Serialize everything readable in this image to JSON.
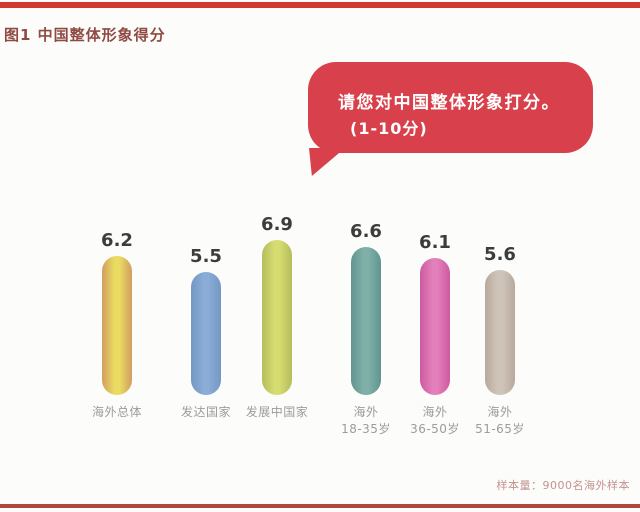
{
  "page": {
    "title": "图1 中国整体形象得分",
    "footnote": "样本量：9000名海外样本"
  },
  "bubble": {
    "line1": "请您对中国整体形象打分。",
    "line2": "(1-10分)"
  },
  "colors": {
    "top_bar": "#D03A2F",
    "bottom_bar": "#B2463E",
    "bubble": "#D8414B",
    "title": "#8F4B43",
    "value_label": "#3C3C3C",
    "category_label": "#9C9C9C",
    "footnote": "#C4928D"
  },
  "chart_data": {
    "type": "bar",
    "title": "图1 中国整体形象得分",
    "question": "请您对中国整体形象打分。(1-10分)",
    "categories": [
      "海外总体",
      "发达国家",
      "发展中国家",
      "海外\n18-35岁",
      "海外\n36-50岁",
      "海外\n51-65岁"
    ],
    "values": [
      6.2,
      5.5,
      6.9,
      6.6,
      6.1,
      5.6
    ],
    "value_range": [
      1,
      10
    ],
    "ylim": [
      0,
      7.5
    ],
    "grid": false,
    "legend": "none",
    "footnote": "样本量：9000名海外样本",
    "bar_colors": [
      {
        "edge": "#D2A061",
        "mid": "#EADC60"
      },
      {
        "edge": "#7598C5",
        "mid": "#8AACD6"
      },
      {
        "edge": "#B6BE5E",
        "mid": "#D6DC70"
      },
      {
        "edge": "#639690",
        "mid": "#7EB0A8"
      },
      {
        "edge": "#CE5CA2",
        "mid": "#E37FBA"
      },
      {
        "edge": "#B9AA9D",
        "mid": "#CFC4B9"
      }
    ]
  }
}
